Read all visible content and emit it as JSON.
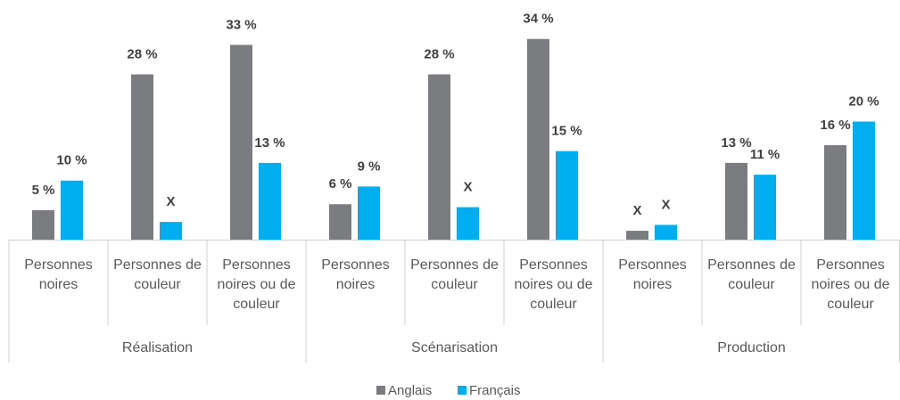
{
  "chart_data": {
    "type": "bar",
    "categories": [
      "Personnes noires",
      "Personnes de couleur",
      "Personnes noires ou de couleur",
      "Personnes noires",
      "Personnes de couleur",
      "Personnes noires ou de couleur",
      "Personnes noires",
      "Personnes de couleur",
      "Personnes noires ou de couleur"
    ],
    "groups": [
      "Réalisation",
      "Scénarisation",
      "Production"
    ],
    "series": [
      {
        "name": "Anglais",
        "color": "#7b7c7f",
        "values": [
          5,
          28,
          33,
          6,
          28,
          34,
          1.5,
          13,
          16
        ],
        "value_labels": [
          "5 %",
          "28 %",
          "33 %",
          "6 %",
          "28 %",
          "34 %",
          "X",
          "13 %",
          "16 %"
        ]
      },
      {
        "name": "Français",
        "color": "#00aeef",
        "values": [
          10,
          3,
          13,
          9,
          5.5,
          15,
          2.5,
          11,
          20
        ],
        "value_labels": [
          "10 %",
          "X",
          "13 %",
          "9 %",
          "X",
          "15 %",
          "X",
          "11 %",
          "20 %"
        ]
      }
    ],
    "ylim": [
      0,
      40
    ],
    "legend": "bottom"
  }
}
